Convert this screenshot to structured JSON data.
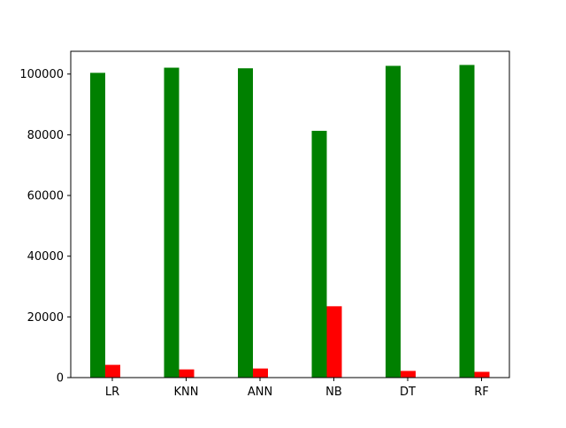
{
  "chart_data": {
    "type": "bar",
    "categories": [
      "LR",
      "KNN",
      "ANN",
      "NB",
      "DT",
      "RF"
    ],
    "series": [
      {
        "color": "#008000",
        "values": [
          100400,
          102100,
          101900,
          81300,
          102700,
          103000
        ]
      },
      {
        "color": "#ff0000",
        "values": [
          4200,
          2700,
          3000,
          23500,
          2200,
          1900
        ]
      }
    ],
    "ylim": [
      0,
      107500
    ],
    "yticks": [
      0,
      20000,
      40000,
      60000,
      80000,
      100000
    ],
    "grid": false,
    "legend": "none"
  }
}
